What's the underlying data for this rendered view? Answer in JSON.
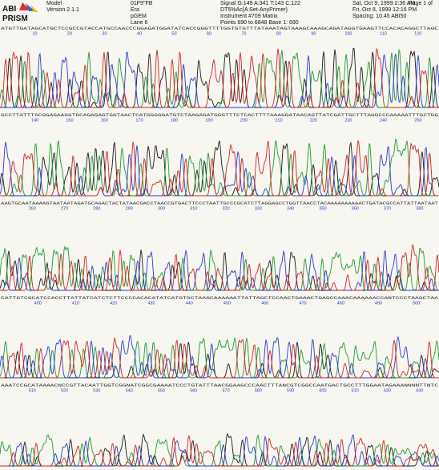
{
  "header": {
    "logo_text": [
      "ABI",
      "PRISM"
    ],
    "model": [
      "Model",
      "Version 2.1.1"
    ],
    "sample": [
      "01F9\"FB",
      "Era",
      "pGEM",
      "Lane 6"
    ],
    "signal": [
      "Signal G:149 A:341 T:143 C:122",
      "DT5%Ac{A Set-AnyPrimer}",
      "Instrument #709 Matrix",
      "Points 690 to 6848   Base 1: 690"
    ],
    "dates": [
      "Sat, Oct 9, 1999  2:36 AM",
      "Fri, Oct 8, 1999  12:16 PM",
      "Spacing: 10.45 ABI50"
    ],
    "page": "Page 1 of"
  },
  "colors": {
    "A": "#1f9a2e",
    "C": "#2a3cc6",
    "G": "#1a1a1a",
    "T": "#d2231f",
    "bg": "#f7f6f1"
  },
  "panels": [
    {
      "sequence": "ATGTTGATAGCATGCTCCGCCGTACCATGCCAACCCGGAGATGGATATCACCGGGTTTTGGTGTGTTTATAAATAGTAAAGCAAAGCAGATAGGTGAAGTTCCACACAGGCTTAGC",
      "ticks": [
        10,
        20,
        30,
        40,
        50,
        60,
        70,
        80,
        90,
        100,
        110,
        120
      ]
    },
    {
      "sequence": "GCCTTATTTACGGAGAAGGTGCAGAGAGTGGTAACTCATGGGGGATGTCTAAGAGATGGGTTTCTCACTTTTAAAGGATAACAGTTATCGATTGCTTTAGGCCCAAAAATTTGCTGG",
      "ticks": [
        140,
        150,
        160,
        170,
        180,
        190,
        200,
        210,
        220,
        230,
        240,
        250
      ]
    },
    {
      "sequence": "AAGTGCAATAAAAGTAATAATAGATGCAGACTACTATAACGACCTAACCGTGACTTCCCTAATTGCCCGCATCTTAGGAGCCTGGTTAACCTACAAAAAAAAAACTGATACGCCATTATTAATAAT",
      "ticks": [
        260,
        270,
        280,
        290,
        300,
        310,
        320,
        330,
        340,
        350,
        360,
        370,
        380
      ]
    },
    {
      "sequence": "CATTGTCGCATCCACCTTATTATCATCTCTTCCCCACACATATCATGTGCTAAGCAAAAAATTATTAGCTCCAACTGAAACTGAGCCAAACAAAAAACCANTCCCTAAGCTAA",
      "ticks": [
        400,
        410,
        420,
        430,
        440,
        450,
        460,
        470,
        480,
        490,
        500
      ]
    },
    {
      "sequence": "AAATCCGCATAAAACNCCGTTACAATTGGTCGGNATCGGCGAAAATCCCTGTATTTAACGGAAGCCCAACTTTANCGTCGGCCAATGACTGCCTTTGGAATAGAAANNNNTTNTC",
      "ticks": [
        510,
        520,
        530,
        540,
        550,
        560,
        570,
        580,
        590,
        600,
        610,
        620,
        630
      ]
    }
  ]
}
